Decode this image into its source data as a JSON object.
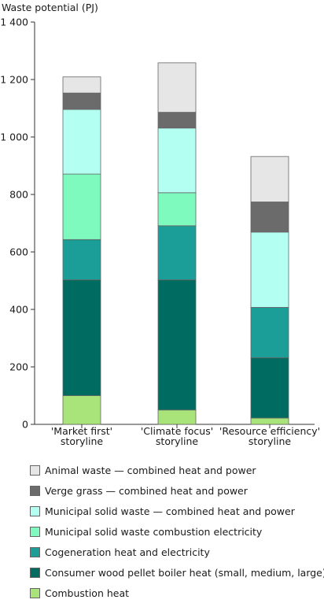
{
  "chart_data": {
    "type": "bar",
    "stacked": true,
    "ylabel": "Waste potential (PJ)",
    "ylim": [
      0,
      1400
    ],
    "yticks": [
      "0",
      "200",
      "400",
      "600",
      "800",
      "1 000",
      "1 200",
      "1 400"
    ],
    "ytick_values": [
      0,
      200,
      400,
      600,
      800,
      1000,
      1200,
      1400
    ],
    "categories": [
      [
        "'Market first'",
        "storyline"
      ],
      [
        "'Climate focus'",
        "storyline"
      ],
      [
        "'Resource efficiency'",
        "storyline"
      ]
    ],
    "series": [
      {
        "name": "Combustion heat",
        "color": "#a8e47a",
        "values": [
          100,
          50,
          22
        ]
      },
      {
        "name": "Consumer wood pellet boiler heat (small, medium, large)",
        "color": "#006b61",
        "values": [
          403,
          453,
          210
        ]
      },
      {
        "name": "Cogeneration heat and electricity",
        "color": "#1c9e98",
        "values": [
          140,
          188,
          175
        ]
      },
      {
        "name": "Municipal solid waste combustion electricity",
        "color": "#7ffabf",
        "values": [
          228,
          115,
          0
        ]
      },
      {
        "name": "Municipal solid waste — combined heat and power",
        "color": "#b3fff2",
        "values": [
          225,
          225,
          262
        ]
      },
      {
        "name": "Verge grass — combined heat and power",
        "color": "#6b6b6b",
        "values": [
          57,
          55,
          105
        ]
      },
      {
        "name": "Animal waste — combined heat and power",
        "color": "#e6e6e6",
        "values": [
          56,
          172,
          158
        ]
      }
    ],
    "legend_order": [
      6,
      5,
      4,
      3,
      2,
      1,
      0
    ],
    "legend_position": "bottom",
    "grid": false
  }
}
